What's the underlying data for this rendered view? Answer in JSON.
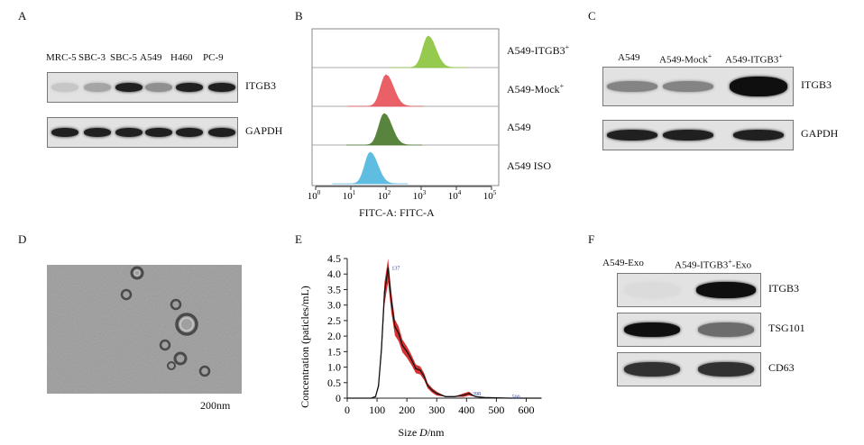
{
  "panel_a": {
    "label": "A",
    "lanes": [
      "MRC-5",
      "SBC-3",
      "SBC-5",
      "A549",
      "H460",
      "PC-9"
    ],
    "blots": [
      {
        "name": "ITGB3",
        "intensity": [
          0.25,
          0.45,
          0.95,
          0.55,
          0.95,
          0.95
        ]
      },
      {
        "name": "GAPDH",
        "intensity": [
          0.95,
          0.95,
          0.95,
          0.95,
          0.95,
          0.95
        ]
      }
    ]
  },
  "panel_b": {
    "label": "B",
    "tracks": [
      {
        "name": "A549-ITGB3",
        "sup": "+",
        "color": "#8dc63f",
        "peak_log": 3.2
      },
      {
        "name": "A549-Mock",
        "sup": "+",
        "color": "#e8535a",
        "peak_log": 2.0
      },
      {
        "name": "A549",
        "sup": "",
        "color": "#4a7a2e",
        "peak_log": 1.95
      },
      {
        "name": "A549 ISO",
        "sup": "",
        "color": "#52b8e0",
        "peak_log": 1.55
      }
    ],
    "tick_base": "10",
    "tick_exponents": [
      "0",
      "1",
      "2",
      "3",
      "4",
      "5"
    ],
    "xlabel": "FITC-A: FITC-A"
  },
  "panel_c": {
    "label": "C",
    "lanes": [
      {
        "name": "A549",
        "sup": ""
      },
      {
        "name": "A549-Mock",
        "sup": "+"
      },
      {
        "name": "A549-ITGB3",
        "sup": "+"
      }
    ],
    "blots": [
      {
        "name": "ITGB3",
        "intensity": [
          0.6,
          0.6,
          1.0
        ]
      },
      {
        "name": "GAPDH",
        "intensity": [
          0.95,
          0.95,
          0.95
        ]
      }
    ]
  },
  "panel_d": {
    "label": "D",
    "scale": "200nm"
  },
  "panel_e": {
    "label": "E",
    "chart_data": {
      "type": "line",
      "xlabel_prefix": "Size ",
      "xlabel_var": "D",
      "xlabel_suffix": "/nm",
      "ylabel": "Concentration (paticles/mL)",
      "xlim": [
        0,
        650
      ],
      "ylim": [
        0,
        4.5
      ],
      "xticks": [
        0,
        100,
        200,
        300,
        400,
        500,
        600
      ],
      "yticks": [
        0,
        0.5,
        1.0,
        1.5,
        2.0,
        2.5,
        3.0,
        3.5,
        4.0,
        4.5
      ],
      "x": [
        0,
        80,
        95,
        105,
        115,
        125,
        137,
        148,
        160,
        172,
        185,
        200,
        215,
        230,
        245,
        258,
        270,
        285,
        300,
        330,
        360,
        390,
        408,
        430,
        460,
        500,
        550,
        600,
        650
      ],
      "y": [
        0,
        0,
        0.05,
        0.4,
        1.6,
        3.4,
        4.2,
        3.1,
        2.3,
        2.1,
        1.7,
        1.5,
        1.25,
        0.95,
        0.9,
        0.7,
        0.4,
        0.25,
        0.15,
        0.05,
        0.05,
        0.1,
        0.15,
        0.05,
        0.02,
        0.01,
        0,
        0,
        0
      ],
      "annotations": [
        {
          "text": "137",
          "x": 137,
          "y": 4.2
        },
        {
          "text": "398",
          "x": 408,
          "y": 0.15
        },
        {
          "text": "500",
          "x": 540,
          "y": 0.05
        }
      ]
    }
  },
  "panel_f": {
    "label": "F",
    "lanes": [
      {
        "name": "A549-Exo",
        "sup": "",
        "suffix": ""
      },
      {
        "name": "A549-ITGB3",
        "sup": "+",
        "suffix": "-Exo"
      }
    ],
    "blots": [
      {
        "name": "ITGB3",
        "intensity": [
          0.08,
          1.0
        ]
      },
      {
        "name": "TSG101",
        "intensity": [
          1.0,
          0.7
        ]
      },
      {
        "name": "CD63",
        "intensity": [
          0.9,
          0.9
        ]
      }
    ]
  }
}
